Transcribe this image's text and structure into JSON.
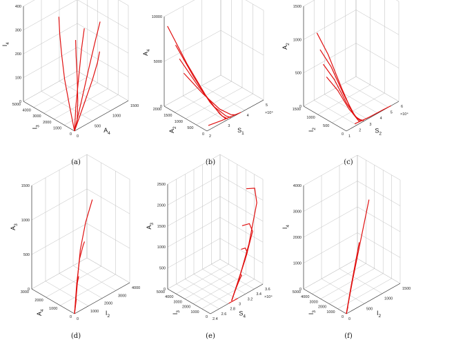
{
  "chart_data": [
    {
      "type": "line3d",
      "caption": "(a)",
      "axes": {
        "x": {
          "label": "I",
          "sub": "3",
          "ticks": [
            "0",
            "1000",
            "2000",
            "3000",
            "4000",
            "5000"
          ]
        },
        "y": {
          "label": "A",
          "sub": "4",
          "ticks": [
            "0",
            "500",
            "1000",
            "1500"
          ]
        },
        "z": {
          "label": "I",
          "sub": "4",
          "ticks": [
            "0",
            "100",
            "200",
            "300",
            "400"
          ]
        }
      },
      "series": [
        {
          "points": [
            [
              0,
              0,
              0
            ],
            [
              0.15,
              0.05,
              0.2
            ],
            [
              0.3,
              0.1,
              0.42
            ],
            [
              0.42,
              0.16,
              0.62
            ],
            [
              0.5,
              0.2,
              0.8
            ],
            [
              0.56,
              0.24,
              0.95
            ]
          ]
        },
        {
          "points": [
            [
              0,
              0,
              0
            ],
            [
              0.08,
              0.1,
              0.2
            ],
            [
              0.15,
              0.22,
              0.45
            ],
            [
              0.2,
              0.32,
              0.7
            ],
            [
              0.23,
              0.4,
              0.88
            ]
          ]
        },
        {
          "points": [
            [
              0,
              0,
              0
            ],
            [
              0.05,
              0.18,
              0.25
            ],
            [
              0.08,
              0.34,
              0.52
            ],
            [
              0.1,
              0.48,
              0.76
            ],
            [
              0.11,
              0.58,
              0.93
            ]
          ]
        },
        {
          "points": [
            [
              0,
              0,
              0
            ],
            [
              0.02,
              0.2,
              0.22
            ],
            [
              0.05,
              0.38,
              0.4
            ],
            [
              0.1,
              0.52,
              0.52
            ],
            [
              0.14,
              0.6,
              0.6
            ]
          ]
        },
        {
          "points": [
            [
              0,
              0,
              0
            ],
            [
              0.0,
              0.05,
              0.1
            ],
            [
              0.0,
              0.06,
              0.3
            ],
            [
              0.0,
              0.05,
              0.55
            ],
            [
              0.0,
              0.03,
              0.78
            ],
            [
              0.0,
              0.02,
              0.95
            ]
          ]
        }
      ]
    },
    {
      "type": "line3d",
      "caption": "(b)",
      "axes": {
        "x": {
          "label": "A",
          "sub": "2",
          "ticks": [
            "0",
            "500",
            "1000",
            "1500",
            "2000"
          ]
        },
        "y": {
          "label": "S",
          "sub": "1",
          "ticks": [
            "2",
            "3",
            "4",
            "5"
          ],
          "multiplier": "×10⁴"
        },
        "z": {
          "label": "A",
          "sub": "4",
          "ticks": [
            "0",
            "5000",
            "10000"
          ]
        }
      },
      "series": [
        {
          "points": [
            [
              0.95,
              0.02,
              0.9
            ],
            [
              0.6,
              0.1,
              0.55
            ],
            [
              0.3,
              0.2,
              0.25
            ],
            [
              0.1,
              0.3,
              0.06
            ],
            [
              0.03,
              0.36,
              0.0
            ]
          ]
        },
        {
          "points": [
            [
              0.8,
              0.05,
              0.72
            ],
            [
              0.5,
              0.14,
              0.42
            ],
            [
              0.25,
              0.24,
              0.17
            ],
            [
              0.08,
              0.33,
              0.03
            ],
            [
              0.02,
              0.38,
              0.0
            ]
          ]
        },
        {
          "points": [
            [
              0.75,
              0.08,
              0.57
            ],
            [
              0.48,
              0.18,
              0.33
            ],
            [
              0.22,
              0.28,
              0.12
            ],
            [
              0.06,
              0.38,
              0.02
            ],
            [
              0.01,
              0.43,
              0.0
            ]
          ]
        },
        {
          "points": [
            [
              0.7,
              0.12,
              0.41
            ],
            [
              0.42,
              0.24,
              0.22
            ],
            [
              0.18,
              0.36,
              0.07
            ],
            [
              0.05,
              0.46,
              0.01
            ],
            [
              0.0,
              0.52,
              0.0
            ]
          ]
        },
        {
          "points": [
            [
              0.1,
              0.1,
              0.0
            ],
            [
              0.05,
              0.3,
              0.0
            ],
            [
              0.02,
              0.5,
              0.0
            ],
            [
              0.0,
              0.6,
              0.0
            ]
          ]
        }
      ]
    },
    {
      "type": "line3d",
      "caption": "(c)",
      "axes": {
        "x": {
          "label": "I",
          "sub": "2",
          "ticks": [
            "0",
            "500",
            "1000",
            "1500"
          ]
        },
        "y": {
          "label": "S",
          "sub": "2",
          "ticks": [
            "1",
            "2",
            "3",
            "4",
            "5",
            "6"
          ],
          "multiplier": "×10⁴"
        },
        "z": {
          "label": "A",
          "sub": "2",
          "ticks": [
            "0",
            "500",
            "1000",
            "1500"
          ]
        }
      },
      "series": [
        {
          "points": [
            [
              0.75,
              0.05,
              0.78
            ],
            [
              0.55,
              0.1,
              0.6
            ],
            [
              0.3,
              0.16,
              0.3
            ],
            [
              0.12,
              0.22,
              0.08
            ],
            [
              0.04,
              0.28,
              0.0
            ]
          ]
        },
        {
          "points": [
            [
              0.7,
              0.07,
              0.62
            ],
            [
              0.5,
              0.12,
              0.48
            ],
            [
              0.28,
              0.18,
              0.24
            ],
            [
              0.1,
              0.24,
              0.06
            ],
            [
              0.03,
              0.3,
              0.0
            ]
          ]
        },
        {
          "points": [
            [
              0.65,
              0.09,
              0.48
            ],
            [
              0.45,
              0.14,
              0.36
            ],
            [
              0.24,
              0.2,
              0.16
            ],
            [
              0.09,
              0.26,
              0.04
            ],
            [
              0.02,
              0.32,
              0.0
            ]
          ]
        },
        {
          "points": [
            [
              0.6,
              0.11,
              0.36
            ],
            [
              0.4,
              0.16,
              0.26
            ],
            [
              0.2,
              0.22,
              0.1
            ],
            [
              0.07,
              0.28,
              0.02
            ],
            [
              0.01,
              0.34,
              0.0
            ]
          ]
        },
        {
          "points": [
            [
              0.05,
              0.2,
              0.0
            ],
            [
              0.02,
              0.45,
              0.0
            ],
            [
              0.01,
              0.7,
              0.0
            ],
            [
              0.0,
              0.85,
              0.0
            ]
          ]
        }
      ]
    },
    {
      "type": "line3d",
      "caption": "(d)",
      "axes": {
        "x": {
          "label": "A",
          "sub": "4",
          "ticks": [
            "0",
            "1000",
            "2000",
            "3000"
          ]
        },
        "y": {
          "label": "I",
          "sub": "2",
          "ticks": [
            "0",
            "1000",
            "2000",
            "3000",
            "4000"
          ]
        },
        "z": {
          "label": "A",
          "sub": "3",
          "ticks": [
            "0",
            "500",
            "1000",
            "1500"
          ]
        }
      },
      "series": [
        {
          "points": [
            [
              0,
              0,
              0
            ],
            [
              0.0,
              0.05,
              0.3
            ],
            [
              0.02,
              0.12,
              0.58
            ],
            [
              0.05,
              0.24,
              0.8
            ],
            [
              0.1,
              0.4,
              0.96
            ]
          ]
        },
        {
          "points": [
            [
              0,
              0,
              0
            ],
            [
              0.0,
              0.04,
              0.28
            ],
            [
              0.01,
              0.1,
              0.5
            ],
            [
              0.03,
              0.18,
              0.6
            ],
            [
              0.05,
              0.22,
              0.62
            ]
          ]
        },
        {
          "points": [
            [
              0,
              0,
              0
            ],
            [
              0.0,
              0.03,
              0.15
            ],
            [
              0.01,
              0.06,
              0.28
            ],
            [
              0.02,
              0.09,
              0.33
            ],
            [
              0.03,
              0.1,
              0.32
            ]
          ]
        },
        {
          "points": [
            [
              0,
              0,
              0
            ],
            [
              0.0,
              0.02,
              0.08
            ],
            [
              0.0,
              0.03,
              0.12
            ],
            [
              0.01,
              0.04,
              0.13
            ]
          ]
        }
      ]
    },
    {
      "type": "line3d",
      "caption": "(e)",
      "axes": {
        "x": {
          "label": "I",
          "sub": "3",
          "ticks": [
            "0",
            "1000",
            "2000",
            "3000",
            "4000",
            "5000"
          ]
        },
        "y": {
          "label": "S",
          "sub": "4",
          "ticks": [
            "2.4",
            "2.6",
            "2.8",
            "3",
            "3.2",
            "3.4",
            "3.6"
          ],
          "multiplier": "×10⁴"
        },
        "z": {
          "label": "A",
          "sub": "3",
          "ticks": [
            "0",
            "500",
            "1000",
            "1500",
            "2000",
            "2500"
          ]
        }
      },
      "series": [
        {
          "points": [
            [
              0.02,
              0.42,
              0.0
            ],
            [
              0.02,
              0.55,
              0.15
            ],
            [
              0.02,
              0.75,
              0.45
            ],
            [
              0.02,
              0.9,
              0.8
            ],
            [
              0.02,
              0.86,
              0.95
            ],
            [
              0.02,
              0.7,
              0.99
            ]
          ]
        },
        {
          "points": [
            [
              0.02,
              0.42,
              0.0
            ],
            [
              0.02,
              0.52,
              0.12
            ],
            [
              0.02,
              0.7,
              0.35
            ],
            [
              0.02,
              0.82,
              0.55
            ],
            [
              0.02,
              0.76,
              0.64
            ],
            [
              0.02,
              0.62,
              0.66
            ]
          ]
        },
        {
          "points": [
            [
              0.02,
              0.42,
              0.0
            ],
            [
              0.02,
              0.5,
              0.1
            ],
            [
              0.02,
              0.62,
              0.25
            ],
            [
              0.02,
              0.72,
              0.38
            ],
            [
              0.02,
              0.68,
              0.43
            ],
            [
              0.02,
              0.6,
              0.44
            ]
          ]
        },
        {
          "points": [
            [
              0.02,
              0.42,
              0.0
            ],
            [
              0.02,
              0.47,
              0.06
            ],
            [
              0.02,
              0.55,
              0.14
            ],
            [
              0.02,
              0.61,
              0.19
            ],
            [
              0.02,
              0.58,
              0.21
            ]
          ]
        },
        {
          "points": [
            [
              0.0,
              0.35,
              0.0
            ],
            [
              0.0,
              0.42,
              0.0
            ],
            [
              0.0,
              0.48,
              0.0
            ],
            [
              0.0,
              0.52,
              0.0
            ]
          ]
        }
      ]
    },
    {
      "type": "line3d",
      "caption": "(f)",
      "axes": {
        "x": {
          "label": "I",
          "sub": "3",
          "ticks": [
            "0",
            "1000",
            "2000",
            "3000",
            "4000",
            "5000"
          ]
        },
        "y": {
          "label": "I",
          "sub": "2",
          "ticks": [
            "0",
            "500",
            "1000",
            "1500"
          ]
        },
        "z": {
          "label": "I",
          "sub": "4",
          "ticks": [
            "0",
            "1000",
            "2000",
            "3000",
            "4000"
          ]
        }
      },
      "series": [
        {
          "points": [
            [
              0,
              0,
              0
            ],
            [
              0.0,
              0.12,
              0.3
            ],
            [
              0.0,
              0.26,
              0.62
            ],
            [
              0.0,
              0.42,
              0.98
            ]
          ]
        },
        {
          "points": [
            [
              0,
              0,
              0
            ],
            [
              0.0,
              0.08,
              0.22
            ],
            [
              0.0,
              0.17,
              0.45
            ],
            [
              0.0,
              0.24,
              0.62
            ]
          ]
        },
        {
          "points": [
            [
              0,
              0,
              0
            ],
            [
              0.0,
              0.04,
              0.1
            ],
            [
              0.0,
              0.08,
              0.21
            ],
            [
              0.0,
              0.1,
              0.27
            ]
          ]
        },
        {
          "points": [
            [
              0,
              0,
              0
            ],
            [
              0.0,
              0.02,
              0.04
            ],
            [
              0.0,
              0.03,
              0.06
            ]
          ]
        }
      ]
    }
  ]
}
